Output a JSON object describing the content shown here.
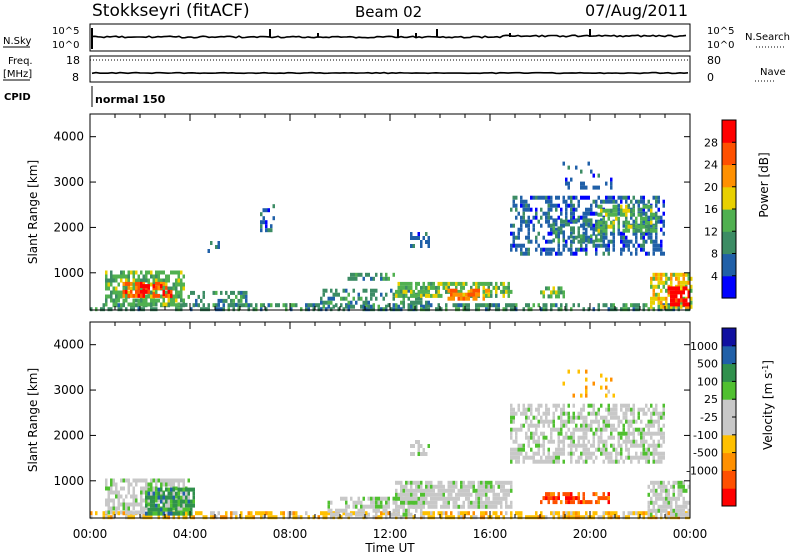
{
  "header": {
    "station": "Stokkseyri (fitACF)",
    "beam": "Beam 02",
    "date": "07/Aug/2011"
  },
  "control_panels": {
    "nsky_label": "N.Sky",
    "nsky_ticks": [
      "10^5",
      "10^0"
    ],
    "nsearch_label": "N.Search",
    "freq_label_1": "Freq.",
    "freq_label_2": "[MHz]",
    "freq_ticks": [
      "18",
      "8"
    ],
    "nave_label": "Nave",
    "nave_ticks": [
      "80",
      "0"
    ],
    "cpid_label": "CPID",
    "cpid_value": "normal 150"
  },
  "colors": {
    "power_scale": [
      "#0000ff",
      "#2060a8",
      "#3c8c64",
      "#50b050",
      "#e8d000",
      "#ff9000",
      "#ff5000",
      "#ff0000"
    ],
    "velocity_scale": [
      "#1010a0",
      "#2060a8",
      "#30904c",
      "#50c030",
      "#c8c8c8",
      "#c8c8c8",
      "#ffc000",
      "#ff9000",
      "#ff5000",
      "#ff0000"
    ],
    "ground_scatter": "#c8c8c8"
  },
  "chart_data": [
    {
      "type": "heatmap",
      "title": "",
      "xlabel": "Time UT",
      "ylabel": "Slant Range [km]",
      "colorbar_label": "Power [dB]",
      "colorbar_ticks": [
        "28",
        "24",
        "20",
        "16",
        "12",
        "8",
        "4"
      ],
      "x_ticks": [
        "00:00",
        "04:00",
        "08:00",
        "12:00",
        "16:00",
        "20:00",
        "00:00"
      ],
      "y_ticks": [
        "1000",
        "2000",
        "3000",
        "4000"
      ],
      "xlim_hours": [
        0,
        24
      ],
      "ylim_km": [
        180,
        4500
      ],
      "regions": [
        {
          "t0": 0.0,
          "t1": 24.0,
          "r0": 180,
          "r1": 330,
          "level": 2,
          "density": 0.55
        },
        {
          "t0": 0.6,
          "t1": 3.8,
          "r0": 330,
          "r1": 1050,
          "level": 3,
          "density": 0.7
        },
        {
          "t0": 1.3,
          "t1": 3.3,
          "r0": 450,
          "r1": 800,
          "level": 6,
          "density": 0.6
        },
        {
          "t0": 2.0,
          "t1": 3.0,
          "r0": 500,
          "r1": 750,
          "level": 7,
          "density": 0.5
        },
        {
          "t0": 3.8,
          "t1": 6.2,
          "r0": 250,
          "r1": 600,
          "level": 2,
          "density": 0.35
        },
        {
          "t0": 6.8,
          "t1": 7.4,
          "r0": 1950,
          "r1": 2600,
          "level": 1,
          "density": 0.35
        },
        {
          "t0": 4.7,
          "t1": 5.2,
          "r0": 1500,
          "r1": 1700,
          "level": 1,
          "density": 0.3
        },
        {
          "t0": 9.2,
          "t1": 13.6,
          "r0": 250,
          "r1": 650,
          "level": 2,
          "density": 0.45
        },
        {
          "t0": 12.8,
          "t1": 13.6,
          "r0": 1550,
          "r1": 1900,
          "level": 1,
          "density": 0.55
        },
        {
          "t0": 10.3,
          "t1": 12.2,
          "r0": 850,
          "r1": 1000,
          "level": 2,
          "density": 0.45
        },
        {
          "t0": 12.2,
          "t1": 16.8,
          "r0": 450,
          "r1": 800,
          "level": 3,
          "density": 0.75
        },
        {
          "t0": 14.3,
          "t1": 16.0,
          "r0": 450,
          "r1": 650,
          "level": 5,
          "density": 0.6
        },
        {
          "t0": 18.0,
          "t1": 19.0,
          "r0": 500,
          "r1": 700,
          "level": 3,
          "density": 0.6
        },
        {
          "t0": 16.8,
          "t1": 23.0,
          "r0": 1450,
          "r1": 2700,
          "level": 1,
          "density": 0.5
        },
        {
          "t0": 18.5,
          "t1": 20.5,
          "r0": 1700,
          "r1": 2200,
          "level": 2,
          "density": 0.6
        },
        {
          "t0": 20.3,
          "t1": 22.6,
          "r0": 1900,
          "r1": 2500,
          "level": 3,
          "density": 0.55
        },
        {
          "t0": 18.8,
          "t1": 21.0,
          "r0": 2900,
          "r1": 3450,
          "level": 1,
          "density": 0.15
        },
        {
          "t0": 22.4,
          "t1": 24.0,
          "r0": 250,
          "r1": 1000,
          "level": 4,
          "density": 0.7
        },
        {
          "t0": 23.1,
          "t1": 24.0,
          "r0": 300,
          "r1": 700,
          "level": 7,
          "density": 0.7
        }
      ]
    },
    {
      "type": "heatmap",
      "title": "",
      "xlabel": "Time UT",
      "ylabel": "Slant Range [km]",
      "colorbar_label": "Velocity [m s^-1]",
      "colorbar_ticks": [
        "1000",
        "500",
        "100",
        "25",
        "-25",
        "-100",
        "-500",
        "-1000"
      ],
      "x_ticks": [
        "00:00",
        "04:00",
        "08:00",
        "12:00",
        "16:00",
        "20:00",
        "00:00"
      ],
      "y_ticks": [
        "1000",
        "2000",
        "3000",
        "4000"
      ],
      "xlim_hours": [
        0,
        24
      ],
      "ylim_km": [
        180,
        4500
      ],
      "regions": [
        {
          "t0": 0.0,
          "t1": 24.0,
          "r0": 180,
          "r1": 330,
          "level": 6,
          "density": 0.6
        },
        {
          "t0": 0.6,
          "t1": 4.0,
          "r0": 330,
          "r1": 1050,
          "level": 4,
          "density": 0.75
        },
        {
          "t0": 2.2,
          "t1": 4.2,
          "r0": 250,
          "r1": 850,
          "level": 2,
          "density": 0.7
        },
        {
          "t0": 9.5,
          "t1": 13.4,
          "r0": 250,
          "r1": 650,
          "level": 4,
          "density": 0.55
        },
        {
          "t0": 12.2,
          "t1": 16.8,
          "r0": 450,
          "r1": 1000,
          "level": 4,
          "density": 0.8
        },
        {
          "t0": 12.8,
          "t1": 13.6,
          "r0": 1550,
          "r1": 1900,
          "level": 4,
          "density": 0.5
        },
        {
          "t0": 16.8,
          "t1": 23.0,
          "r0": 1450,
          "r1": 2700,
          "level": 4,
          "density": 0.6
        },
        {
          "t0": 18.0,
          "t1": 20.8,
          "r0": 500,
          "r1": 750,
          "level": 8,
          "density": 0.65
        },
        {
          "t0": 22.3,
          "t1": 24.0,
          "r0": 250,
          "r1": 1000,
          "level": 4,
          "density": 0.7
        },
        {
          "t0": 18.8,
          "t1": 21.0,
          "r0": 2900,
          "r1": 3450,
          "level": 6,
          "density": 0.15
        }
      ]
    }
  ]
}
